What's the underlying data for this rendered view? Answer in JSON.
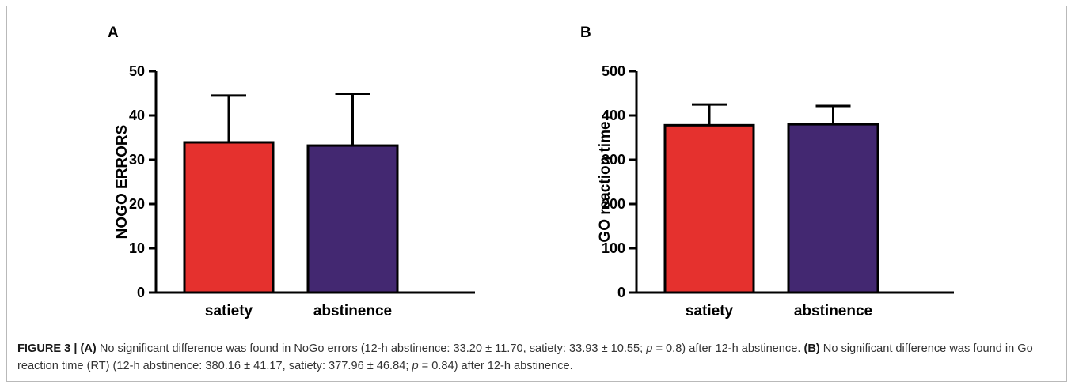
{
  "chart_data": [
    {
      "type": "bar",
      "panel": "A",
      "categories": [
        "satiety",
        "abstinence"
      ],
      "values": [
        33.93,
        33.2
      ],
      "error": [
        10.55,
        11.7
      ],
      "colors": [
        "#e5312e",
        "#432871"
      ],
      "ylabel": "NOGO ERRORS",
      "ylim": [
        0,
        50
      ],
      "yticks": [
        0,
        10,
        20,
        30,
        40,
        50
      ]
    },
    {
      "type": "bar",
      "panel": "B",
      "categories": [
        "satiety",
        "abstinence"
      ],
      "values": [
        377.96,
        380.16
      ],
      "error": [
        46.84,
        41.17
      ],
      "colors": [
        "#e5312e",
        "#432871"
      ],
      "ylabel": "GO reaction time",
      "ylim": [
        0,
        500
      ],
      "yticks": [
        0,
        100,
        200,
        300,
        400,
        500
      ]
    }
  ],
  "caption": {
    "lead": "FIGURE 3 | (A)",
    "a_text_1": " No significant difference was found in NoGo errors (12-h abstinence: 33.20 ± 11.70, satiety: 33.93 ± 10.55; ",
    "p_symbol": "p",
    "a_text_2": " = 0.8) after 12-h abstinence. ",
    "b_label": "(B)",
    "b_text_1": " No significant difference was found in Go reaction time (RT) (12-h abstinence: 380.16 ± 41.17, satiety: 377.96 ± 46.84; ",
    "p_symbol_2": "p",
    "b_text_2": " = 0.84) after 12-h abstinence."
  }
}
